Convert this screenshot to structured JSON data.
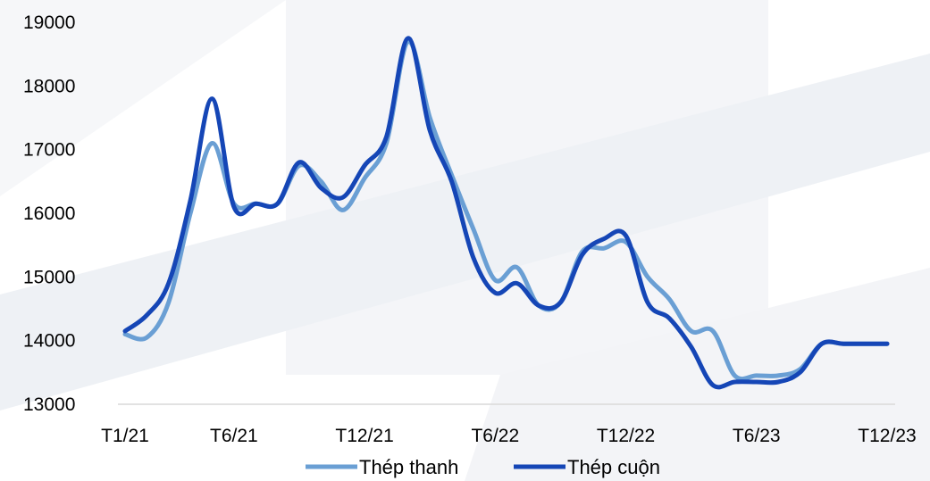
{
  "chart_data": {
    "type": "line",
    "title": "",
    "xlabel": "",
    "ylabel": "",
    "ylim": [
      13000,
      19000
    ],
    "y_ticks": [
      "13000",
      "14000",
      "15000",
      "16000",
      "17000",
      "18000",
      "19000"
    ],
    "x_ticks": [
      "T1/21",
      "T6/21",
      "T12/21",
      "T6/22",
      "T12/22",
      "T6/23",
      "T12/23"
    ],
    "x_tick_index": [
      0,
      5,
      11,
      17,
      23,
      29,
      35
    ],
    "x_count": 36,
    "grid": false,
    "legend_position": "bottom",
    "series": [
      {
        "name": "Thép thanh",
        "color": "#6a9fd4",
        "values": [
          14100,
          14050,
          14600,
          16000,
          17100,
          16150,
          16150,
          16150,
          16750,
          16500,
          16050,
          16550,
          17100,
          18700,
          17500,
          16600,
          15750,
          14950,
          15150,
          14550,
          14600,
          15400,
          15450,
          15550,
          15000,
          14650,
          14150,
          14150,
          13450,
          13450,
          13450,
          13550,
          13950,
          13950,
          13950,
          13950
        ]
      },
      {
        "name": "Thép cuộn",
        "color": "#1546b6",
        "values": [
          14150,
          14400,
          14900,
          16200,
          17800,
          16100,
          16150,
          16150,
          16800,
          16400,
          16250,
          16750,
          17200,
          18750,
          17300,
          16500,
          15300,
          14750,
          14900,
          14550,
          14600,
          15350,
          15600,
          15650,
          14600,
          14350,
          13900,
          13300,
          13350,
          13350,
          13350,
          13500,
          13950,
          13950,
          13950,
          13950
        ]
      }
    ]
  }
}
